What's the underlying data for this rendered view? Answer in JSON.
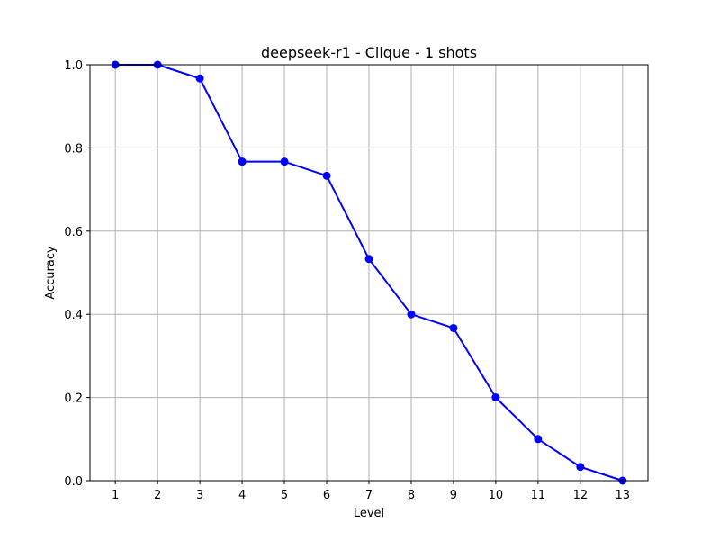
{
  "chart_data": {
    "type": "line",
    "title": "deepseek-r1 - Clique - 1 shots",
    "xlabel": "Level",
    "ylabel": "Accuracy",
    "x": [
      1,
      2,
      3,
      4,
      5,
      6,
      7,
      8,
      9,
      10,
      11,
      12,
      13
    ],
    "x_tick_labels": [
      "1",
      "2",
      "3",
      "4",
      "5",
      "6",
      "7",
      "8",
      "9",
      "10",
      "11",
      "12",
      "13"
    ],
    "y_tick_labels": [
      "0.0",
      "0.2",
      "0.4",
      "0.6",
      "0.8",
      "1.0"
    ],
    "y_ticks": [
      0.0,
      0.2,
      0.4,
      0.6,
      0.8,
      1.0
    ],
    "xlim": [
      0.4,
      13.6
    ],
    "ylim": [
      0.0,
      1.0
    ],
    "grid": true,
    "series": [
      {
        "values": [
          1.0,
          1.0,
          0.967,
          0.767,
          0.767,
          0.733,
          0.533,
          0.4,
          0.367,
          0.2,
          0.1,
          0.033,
          0.0
        ],
        "color": "#0000ff",
        "marker": "circle"
      }
    ]
  }
}
